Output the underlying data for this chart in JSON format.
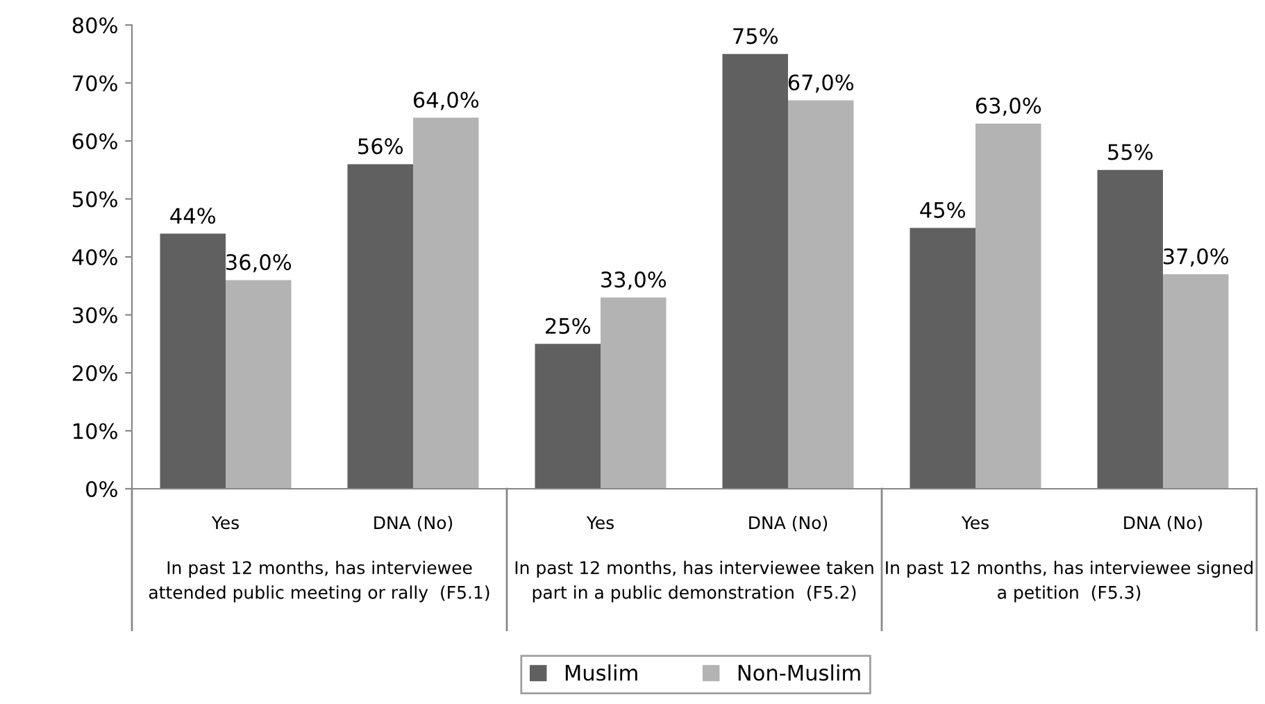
{
  "chart_data": {
    "type": "bar",
    "categories": [
      "Yes",
      "DNA (No)",
      "Yes",
      "DNA (No)",
      "Yes",
      "DNA (No)"
    ],
    "series": [
      {
        "name": "Muslim",
        "color": "#606060",
        "values": [
          44,
          56,
          25,
          75,
          45,
          55
        ],
        "value_labels": [
          "44%",
          "56%",
          "25%",
          "75%",
          "45%",
          "55%"
        ]
      },
      {
        "name": "Non-Muslim",
        "color": "#b3b3b3",
        "values": [
          36,
          64,
          33,
          67,
          63,
          37
        ],
        "value_labels": [
          "36,0%",
          "64,0%",
          "33,0%",
          "67,0%",
          "63,0%",
          "37,0%"
        ]
      }
    ],
    "annotations": [
      "In past 12 months, has interviewee\nattended public meeting or rally  (F5.1)",
      "In past 12 months, has interviewee taken\npart in a public demonstration  (F5.2)",
      "In past 12 months, has interviewee signed\na petition  (F5.3)"
    ],
    "ylim": [
      0,
      80
    ],
    "yticks": [
      {
        "value": 0,
        "label": "0%"
      },
      {
        "value": 10,
        "label": "10%"
      },
      {
        "value": 20,
        "label": "20%"
      },
      {
        "value": 30,
        "label": "30%"
      },
      {
        "value": 40,
        "label": "40%"
      },
      {
        "value": 50,
        "label": "50%"
      },
      {
        "value": 60,
        "label": "60%"
      },
      {
        "value": 70,
        "label": "70%"
      },
      {
        "value": 80,
        "label": "80%"
      }
    ],
    "grid": false,
    "legend": "bottom"
  }
}
